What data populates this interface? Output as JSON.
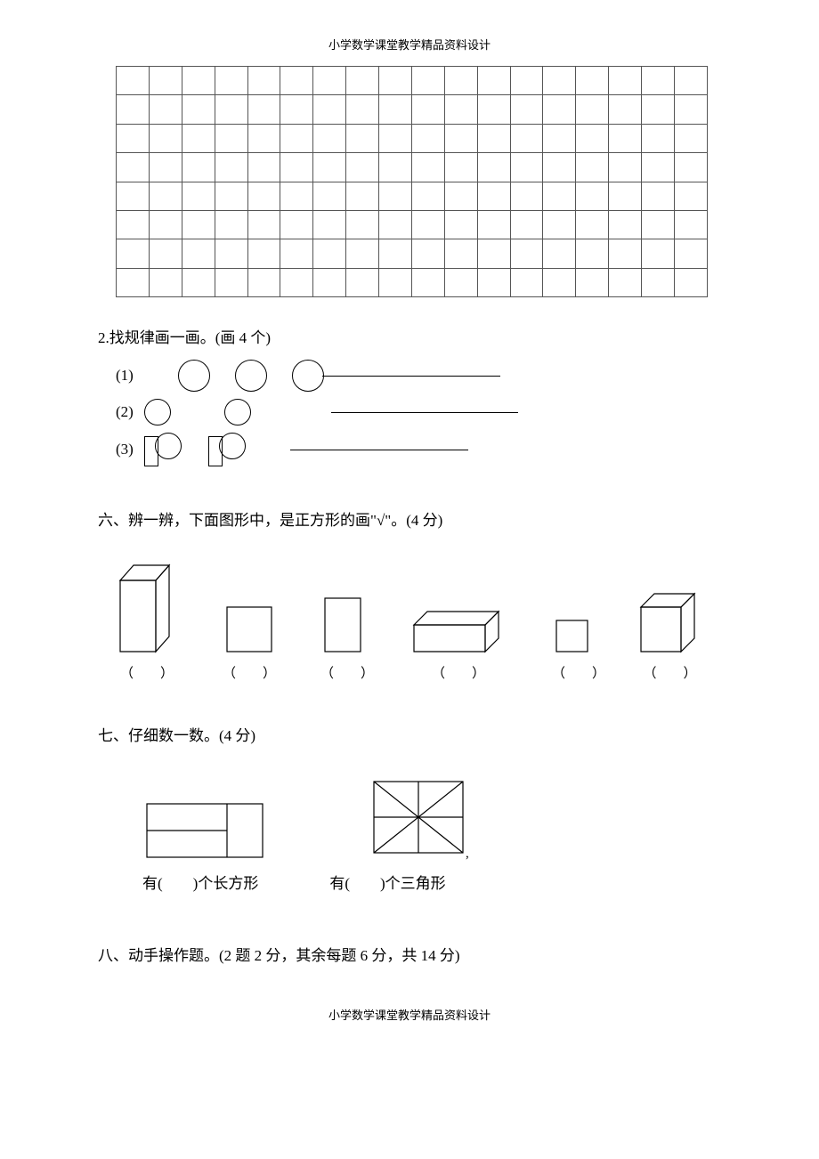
{
  "header": "小学数学课堂教学精品资料设计",
  "footer": "小学数学课堂教学精品资料设计",
  "grid": {
    "rows": 8,
    "cols": 18
  },
  "q2": {
    "title": "2.找规律画一画。(画 4 个)",
    "rows": [
      {
        "num": "(1)"
      },
      {
        "num": "(2)"
      },
      {
        "num": "(3)"
      }
    ]
  },
  "q6": {
    "title": "六、辨一辨，下面图形中，是正方形的画\"√\"。(4 分)",
    "paren": "（　　）",
    "shapes_count": 6
  },
  "q7": {
    "title": "七、仔细数一数。(4 分)",
    "label1_a": "有(",
    "label1_b": ")个长方形",
    "label2_a": "有(",
    "label2_b": ")个三角形"
  },
  "q8": {
    "title": "八、动手操作题。(2 题 2 分，其余每题 6 分，共 14 分)"
  }
}
